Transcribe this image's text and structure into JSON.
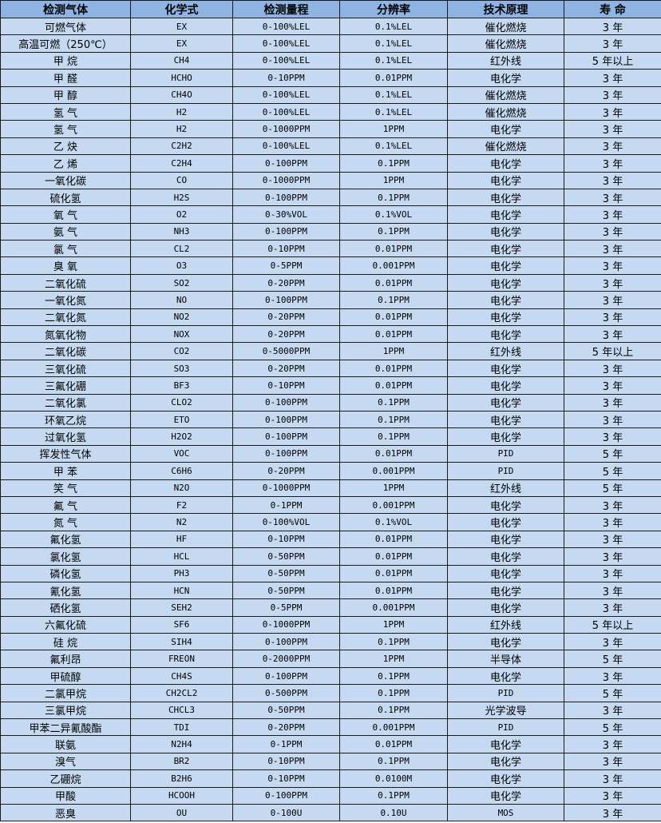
{
  "table": {
    "headers": [
      "检测气体",
      "化学式",
      "检测量程",
      "分辨率",
      "技术原理",
      "寿 命"
    ],
    "rows": [
      [
        "可燃气体",
        "EX",
        "0-100%LEL",
        "0.1%LEL",
        "催化燃烧",
        "3 年"
      ],
      [
        "高温可燃（250℃）",
        "EX",
        "0-100%LEL",
        "0.1%LEL",
        "催化燃烧",
        "3 年"
      ],
      [
        "甲 烷",
        "CH4",
        "0-100%LEL",
        "0.1%LEL",
        "红外线",
        "5 年以上"
      ],
      [
        "甲 醛",
        "HCHO",
        "0-10PPM",
        "0.01PPM",
        "电化学",
        "3 年"
      ],
      [
        "甲 醇",
        "CH4O",
        "0-100%LEL",
        "0.1%LEL",
        "催化燃烧",
        "3 年"
      ],
      [
        "氢 气",
        "H2",
        "0-100%LEL",
        "0.1%LEL",
        "催化燃烧",
        "3 年"
      ],
      [
        "氢 气",
        "H2",
        "0-1000PPM",
        "1PPM",
        "电化学",
        "3 年"
      ],
      [
        "乙 炔",
        "C2H2",
        "0-100%LEL",
        "0.1%LEL",
        "催化燃烧",
        "3 年"
      ],
      [
        "乙 烯",
        "C2H4",
        "0-100PPM",
        "0.1PPM",
        "电化学",
        "3 年"
      ],
      [
        "一氧化碳",
        "CO",
        "0-1000PPM",
        "1PPM",
        "电化学",
        "3 年"
      ],
      [
        "硫化氢",
        "H2S",
        "0-100PPM",
        "0.1PPM",
        "电化学",
        "3 年"
      ],
      [
        "氧 气",
        "O2",
        "0-30%VOL",
        "0.1%VOL",
        "电化学",
        "3 年"
      ],
      [
        "氨 气",
        "NH3",
        "0-100PPM",
        "0.1PPM",
        "电化学",
        "3 年"
      ],
      [
        "氯 气",
        "CL2",
        "0-10PPM",
        "0.01PPM",
        "电化学",
        "3 年"
      ],
      [
        "臭 氧",
        "O3",
        "0-5PPM",
        "0.001PPM",
        "电化学",
        "3 年"
      ],
      [
        "二氧化硫",
        "SO2",
        "0-20PPM",
        "0.01PPM",
        "电化学",
        "3 年"
      ],
      [
        "一氧化氮",
        "NO",
        "0-100PPM",
        "0.1PPM",
        "电化学",
        "3 年"
      ],
      [
        "二氧化氮",
        "NO2",
        "0-20PPM",
        "0.01PPM",
        "电化学",
        "3 年"
      ],
      [
        "氮氧化物",
        "NOX",
        "0-20PPM",
        "0.01PPM",
        "电化学",
        "3 年"
      ],
      [
        "二氧化碳",
        "CO2",
        "0-5000PPM",
        "1PPM",
        "红外线",
        "5 年以上"
      ],
      [
        "三氧化硫",
        "SO3",
        "0-20PPM",
        "0.01PPM",
        "电化学",
        "3 年"
      ],
      [
        "三氟化硼",
        "BF3",
        "0-10PPM",
        "0.01PPM",
        "电化学",
        "3 年"
      ],
      [
        "二氧化氯",
        "CLO2",
        "0-100PPM",
        "0.1PPM",
        "电化学",
        "3 年"
      ],
      [
        "环氧乙烷",
        "ETO",
        "0-100PPM",
        "0.1PPM",
        "电化学",
        "3 年"
      ],
      [
        "过氧化氢",
        "H2O2",
        "0-100PPM",
        "0.1PPM",
        "电化学",
        "3 年"
      ],
      [
        "挥发性气体",
        "VOC",
        "0-100PPM",
        "0.01PPM",
        "PID",
        "5 年"
      ],
      [
        "甲 苯",
        "C6H6",
        "0-20PPM",
        "0.001PPM",
        "PID",
        "5 年"
      ],
      [
        "笑 气",
        "N2O",
        "0-1000PPM",
        "1PPM",
        "红外线",
        "5 年"
      ],
      [
        "氟 气",
        "F2",
        "0-1PPM",
        "0.001PPM",
        "电化学",
        "3 年"
      ],
      [
        "氮 气",
        "N2",
        "0-100%VOL",
        "0.1%VOL",
        "电化学",
        "3 年"
      ],
      [
        "氟化氢",
        "HF",
        "0-10PPM",
        "0.01PPM",
        "电化学",
        "3 年"
      ],
      [
        "氯化氢",
        "HCL",
        "0-50PPM",
        "0.01PPM",
        "电化学",
        "3 年"
      ],
      [
        "磷化氢",
        "PH3",
        "0-50PPM",
        "0.01PPM",
        "电化学",
        "3 年"
      ],
      [
        "氰化氢",
        "HCN",
        "0-50PPM",
        "0.01PPM",
        "电化学",
        "3 年"
      ],
      [
        "硒化氢",
        "SEH2",
        "0-5PPM",
        "0.001PPM",
        "电化学",
        "3 年"
      ],
      [
        "六氟化硫",
        "SF6",
        "0-1000PPM",
        "1PPM",
        "红外线",
        "5 年以上"
      ],
      [
        "硅 烷",
        "SIH4",
        "0-100PPM",
        "0.1PPM",
        "电化学",
        "3 年"
      ],
      [
        "氟利昂",
        "FREON",
        "0-2000PPM",
        "1PPM",
        "半导体",
        "5 年"
      ],
      [
        "甲硫醇",
        "CH4S",
        "0-100PPM",
        "0.1PPM",
        "电化学",
        "3 年"
      ],
      [
        "二氯甲烷",
        "CH2CL2",
        "0-500PPM",
        "0.1PPM",
        "PID",
        "5 年"
      ],
      [
        "三氯甲烷",
        "CHCL3",
        "0-50PPM",
        "0.1PPM",
        "光学波导",
        "3 年"
      ],
      [
        "甲苯二异氰酸酯",
        "TDI",
        "0-20PPM",
        "0.001PPM",
        "PID",
        "5 年"
      ],
      [
        "联氨",
        "N2H4",
        "0-1PPM",
        "0.01PPM",
        "电化学",
        "3 年"
      ],
      [
        "溴气",
        "BR2",
        "0-10PPM",
        "0.1PPM",
        "电化学",
        "3 年"
      ],
      [
        "乙硼烷",
        "B2H6",
        "0-10PPM",
        "0.0100M",
        "电化学",
        "3 年"
      ],
      [
        "甲酸",
        "HCOOH",
        "0-100PPM",
        "0.1PPM",
        "电化学",
        "3 年"
      ],
      [
        "恶臭",
        "OU",
        "0-100U",
        "0.10U",
        "MOS",
        "3 年"
      ]
    ]
  },
  "colors": {
    "header_bg": "#8db4e2",
    "row_bg": "#c5d9f1",
    "border": "#1a1a1a"
  }
}
